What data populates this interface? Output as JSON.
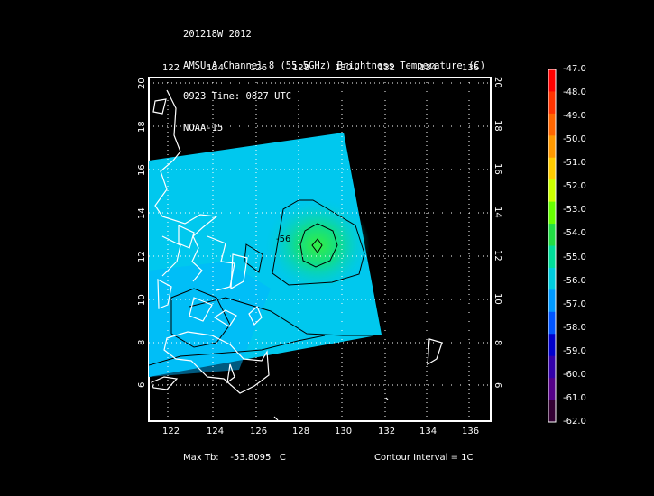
{
  "header": {
    "line1": "201218W 2012",
    "line2": "AMSU-A Channel 8 (55.5GHz) Brightness Temperature (C)",
    "line3": "0923 Time: 0827 UTC",
    "line4": "NOAA-15"
  },
  "axes": {
    "lon_ticks": [
      "122",
      "124",
      "126",
      "128",
      "130",
      "132",
      "134",
      "136"
    ],
    "lat_ticks": [
      "6",
      "8",
      "10",
      "12",
      "14",
      "16",
      "18",
      "20"
    ]
  },
  "contour_label": "-56",
  "colorbar": {
    "labels": [
      "-47.0",
      "-48.0",
      "-49.0",
      "-50.0",
      "-51.0",
      "-52.0",
      "-53.0",
      "-54.0",
      "-55.0",
      "-56.0",
      "-57.0",
      "-58.0",
      "-59.0",
      "-60.0",
      "-61.0",
      "-62.0"
    ],
    "colors": [
      "#ff0000",
      "#ff3300",
      "#ff6600",
      "#ff9900",
      "#ffcc00",
      "#ccff00",
      "#66ff00",
      "#22dd44",
      "#00dd99",
      "#00ccdd",
      "#0099ff",
      "#0055ff",
      "#0000cc",
      "#3300aa",
      "#550088",
      "#330033"
    ]
  },
  "footer": {
    "max_tb_label": "Max Tb:",
    "max_tb_value": "-53.8095",
    "max_tb_unit": "C",
    "contour_interval": "Contour Interval = 1C"
  }
}
